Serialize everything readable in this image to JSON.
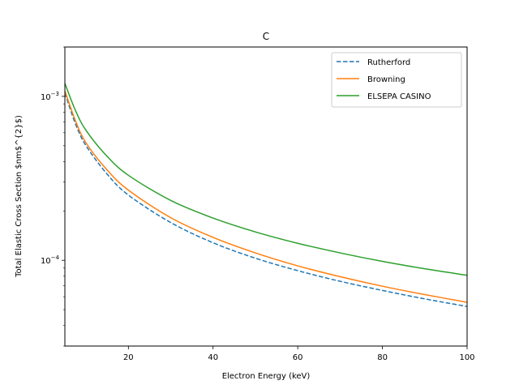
{
  "chart_data": {
    "type": "line",
    "title": "C",
    "xlabel": "Electron Energy (keV)",
    "ylabel": "Total Elastic Cross Section $nm$^{2}$)",
    "x_scale": "linear",
    "y_scale": "log",
    "xlim": [
      5,
      100
    ],
    "ylim": [
      3e-05,
      0.002
    ],
    "x_ticks": [
      {
        "value": 20,
        "label": "20"
      },
      {
        "value": 40,
        "label": "40"
      },
      {
        "value": 60,
        "label": "60"
      },
      {
        "value": 80,
        "label": "80"
      },
      {
        "value": 100,
        "label": "100"
      }
    ],
    "y_ticks": [
      {
        "value": 0.0001,
        "base": "10",
        "exp": "−4"
      },
      {
        "value": 0.001,
        "base": "10",
        "exp": "−3"
      }
    ],
    "grid": false,
    "legend": {
      "placement": "top-right"
    },
    "x": [
      5,
      7.5,
      10,
      15,
      20,
      30,
      40,
      50,
      60,
      70,
      80,
      90,
      100
    ],
    "series": [
      {
        "name": "Rutherford",
        "color": "#1f77b4",
        "dash": "dashed",
        "values": [
          0.00105,
          0.00068,
          0.0005,
          0.000335,
          0.00025,
          0.00017,
          0.000128,
          0.000103,
          8.65e-05,
          7.45e-05,
          6.55e-05,
          5.82e-05,
          5.23e-05
        ]
      },
      {
        "name": "Browning",
        "color": "#ff7f0e",
        "dash": "solid",
        "values": [
          0.00108,
          0.00071,
          0.00052,
          0.000355,
          0.000268,
          0.000182,
          0.000138,
          0.000111,
          9.25e-05,
          7.95e-05,
          6.95e-05,
          6.18e-05,
          5.55e-05
        ]
      },
      {
        "name": "ELSEPA CASINO",
        "color": "#2ca02c",
        "dash": "solid",
        "values": [
          0.0012,
          0.00082,
          0.00062,
          0.00043,
          0.00033,
          0.000232,
          0.000181,
          0.000149,
          0.000127,
          0.000111,
          9.85e-05,
          8.88e-05,
          8.1e-05
        ]
      }
    ]
  }
}
